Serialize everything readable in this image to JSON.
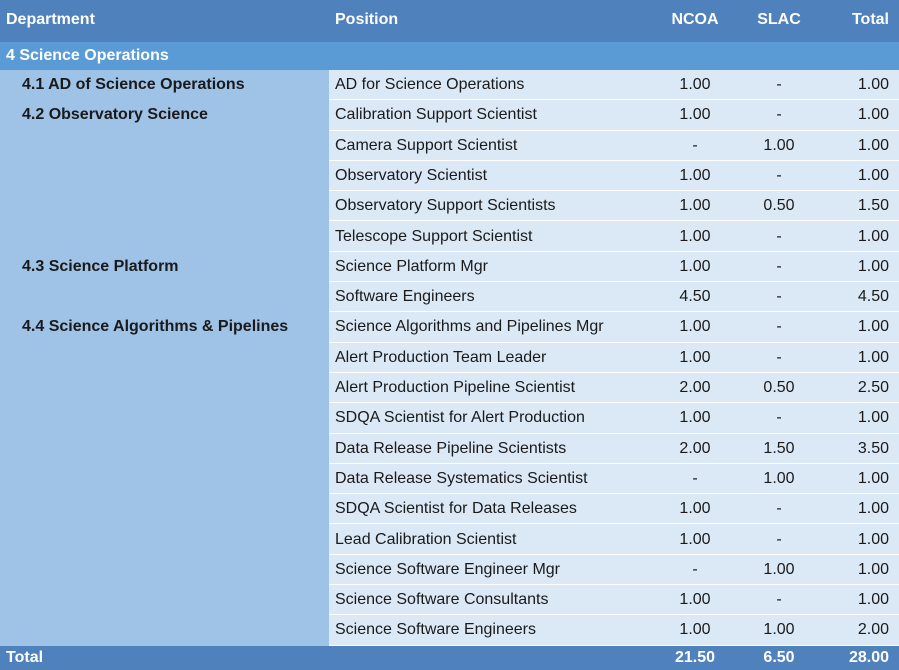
{
  "header": {
    "department": "Department",
    "position": "Position",
    "ncoa": "NCOA",
    "slac": "SLAC",
    "total": "Total"
  },
  "section": "4  Science Operations",
  "departments": [
    {
      "label": "4.1  AD of Science Operations",
      "row": 0
    },
    {
      "label": "4.2  Observatory Science",
      "row": 1
    },
    {
      "label": "4.3  Science Platform",
      "row": 6
    },
    {
      "label": "4.4  Science Algorithms & Pipelines",
      "row": 8
    }
  ],
  "rows": [
    {
      "position": "AD for Science Operations",
      "ncoa": "1.00",
      "slac": "-",
      "total": "1.00"
    },
    {
      "position": "Calibration Support Scientist",
      "ncoa": "1.00",
      "slac": "-",
      "total": "1.00"
    },
    {
      "position": "Camera Support Scientist",
      "ncoa": "-",
      "slac": "1.00",
      "total": "1.00"
    },
    {
      "position": "Observatory Scientist",
      "ncoa": "1.00",
      "slac": "-",
      "total": "1.00"
    },
    {
      "position": "Observatory Support Scientists",
      "ncoa": "1.00",
      "slac": "0.50",
      "total": "1.50"
    },
    {
      "position": "Telescope Support Scientist",
      "ncoa": "1.00",
      "slac": "-",
      "total": "1.00"
    },
    {
      "position": "Science Platform Mgr",
      "ncoa": "1.00",
      "slac": "-",
      "total": "1.00"
    },
    {
      "position": "Software Engineers",
      "ncoa": "4.50",
      "slac": "-",
      "total": "4.50"
    },
    {
      "position": "Science Algorithms and Pipelines Mgr",
      "ncoa": "1.00",
      "slac": "-",
      "total": "1.00"
    },
    {
      "position": "Alert Production Team Leader",
      "ncoa": "1.00",
      "slac": "-",
      "total": "1.00"
    },
    {
      "position": "Alert Production Pipeline Scientist",
      "ncoa": "2.00",
      "slac": "0.50",
      "total": "2.50"
    },
    {
      "position": "SDQA Scientist for Alert Production",
      "ncoa": "1.00",
      "slac": "-",
      "total": "1.00"
    },
    {
      "position": "Data Release Pipeline Scientists",
      "ncoa": "2.00",
      "slac": "1.50",
      "total": "3.50"
    },
    {
      "position": "Data Release Systematics Scientist",
      "ncoa": "-",
      "slac": "1.00",
      "total": "1.00"
    },
    {
      "position": "SDQA Scientist for Data Releases",
      "ncoa": "1.00",
      "slac": "-",
      "total": "1.00"
    },
    {
      "position": "Lead Calibration Scientist",
      "ncoa": "1.00",
      "slac": "-",
      "total": "1.00"
    },
    {
      "position": "Science Software Engineer Mgr",
      "ncoa": "-",
      "slac": "1.00",
      "total": "1.00"
    },
    {
      "position": "Science Software Consultants",
      "ncoa": "1.00",
      "slac": "-",
      "total": "1.00"
    },
    {
      "position": "Science Software Engineers",
      "ncoa": "1.00",
      "slac": "1.00",
      "total": "2.00"
    }
  ],
  "totals": {
    "label": "Total",
    "ncoa": "21.50",
    "slac": "6.50",
    "total": "28.00"
  },
  "colors": {
    "header": "#4f81bd",
    "section": "#5b9bd5",
    "department_column": "#9fc2e7",
    "body": "#dbe8f6"
  }
}
